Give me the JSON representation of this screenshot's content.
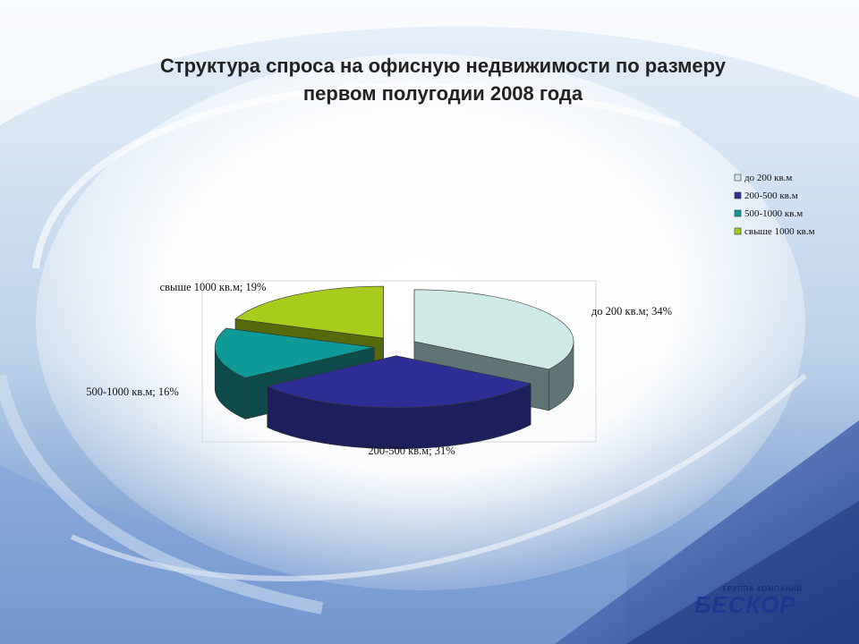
{
  "slide": {
    "title_line1": "Структура спроса на офисную недвижимости по размеру",
    "title_line2": "первом полугодии 2008 года"
  },
  "chart_data": {
    "type": "pie",
    "title": "Структура спроса на офисную недвижимости по размеру первом полугодии 2008 года",
    "categories": [
      "до 200 кв.м",
      "200-500 кв.м",
      "500-1000 кв.м",
      "свыше 1000 кв.м"
    ],
    "values": [
      34,
      31,
      16,
      19
    ],
    "unit": "%",
    "data_labels": [
      "до 200 кв.м; 34%",
      "200-500 кв.м; 31%",
      "500-1000 кв.м; 16%",
      "свыше 1000 кв.м; 19%"
    ],
    "colors": [
      "#cfe9e6",
      "#2e2f96",
      "#0f9a9a",
      "#a8cc1c"
    ],
    "side_colors": [
      "#5f7475",
      "#1d1f5c",
      "#0d4c4b",
      "#556a0c"
    ],
    "legend_position": "top-right",
    "three_d": true,
    "exploded": true
  },
  "logo": {
    "small_text": "ГРУППА КОМПАНИЙ",
    "big_text": "БЕСКОР"
  }
}
